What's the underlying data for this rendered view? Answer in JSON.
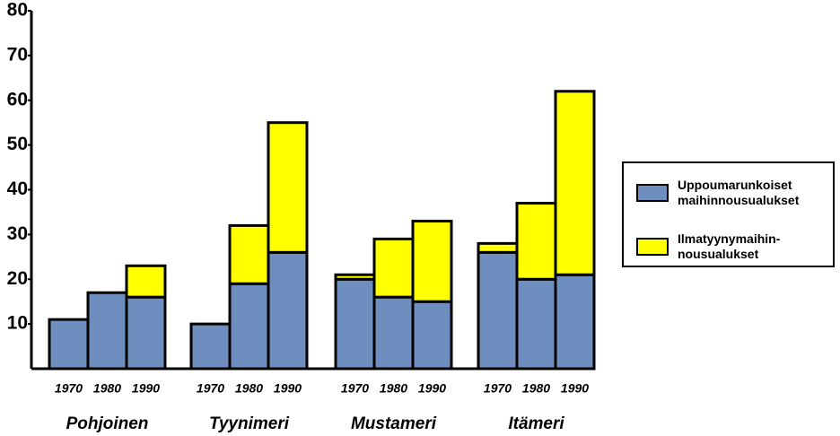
{
  "chart_data": {
    "type": "grouped-stacked-bar",
    "groups": [
      "Pohjoinen",
      "Tyynimeri",
      "Mustameri",
      "Itämeri"
    ],
    "categories": [
      "1970",
      "1980",
      "1990"
    ],
    "series": [
      {
        "name": "Uppoumarunkoiset maihinnousualukset",
        "color": "#6d8ebf",
        "values": [
          [
            11,
            17,
            16
          ],
          [
            10,
            19,
            26
          ],
          [
            20,
            16,
            15
          ],
          [
            26,
            20,
            21
          ]
        ]
      },
      {
        "name": "Ilmatyynymaihin-nousualukset",
        "color": "#ffff00",
        "values": [
          [
            0,
            0,
            7
          ],
          [
            0,
            13,
            29
          ],
          [
            1,
            13,
            18
          ],
          [
            2,
            17,
            41
          ]
        ]
      }
    ],
    "ylim": [
      0,
      80
    ],
    "yticks": [
      10,
      20,
      30,
      40,
      50,
      60,
      70,
      80
    ],
    "legend": "right"
  }
}
